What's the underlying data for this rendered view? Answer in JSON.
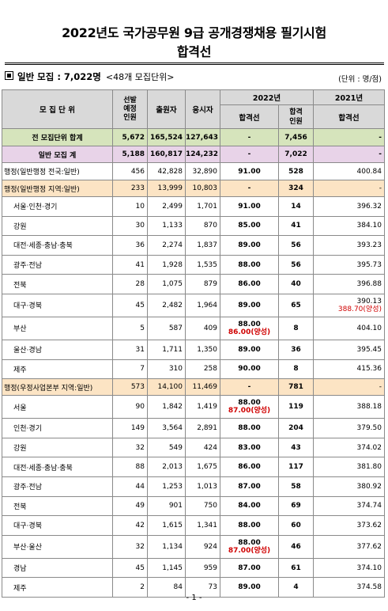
{
  "title_line1": "2022년도  국가공무원  9급  공개경쟁채용  필기시험",
  "title_line2": "합격선",
  "section": {
    "label": "일반  모집 : 7,022명",
    "sub": "<48개  모집단위>",
    "unit": "(단위 :  명/점)"
  },
  "headers": {
    "unit": "모  집  단  위",
    "planned": "선발\n예정\n인원",
    "applicants": "출원자",
    "takers": "응시자",
    "y2022": "2022년",
    "cutoff": "합격선",
    "passed": "합격\n인원",
    "y2021": "2021년",
    "cutoff2021": "합격선"
  },
  "rows": [
    {
      "type": "total",
      "name": "전  모집단위  합계",
      "planned": "5,672",
      "applicants": "165,524",
      "takers": "127,643",
      "cutoff": "-",
      "cutoff_alt": "",
      "passed": "7,456",
      "prev": "-",
      "prev_alt": ""
    },
    {
      "type": "general",
      "name": "일반  모집  계",
      "planned": "5,188",
      "applicants": "160,817",
      "takers": "124,232",
      "cutoff": "-",
      "cutoff_alt": "",
      "passed": "7,022",
      "prev": "-",
      "prev_alt": ""
    },
    {
      "type": "plain",
      "name": "행정(일반행정 전국:일반)",
      "planned": "456",
      "applicants": "42,828",
      "takers": "32,890",
      "cutoff": "91.00",
      "cutoff_alt": "",
      "passed": "528",
      "prev": "400.84",
      "prev_alt": ""
    },
    {
      "type": "group",
      "name": "행정(일반행정 지역:일반)",
      "planned": "233",
      "applicants": "13,999",
      "takers": "10,803",
      "cutoff": "-",
      "cutoff_alt": "",
      "passed": "324",
      "prev": "-",
      "prev_alt": ""
    },
    {
      "type": "sub",
      "name": "서울·인천·경기",
      "planned": "10",
      "applicants": "2,499",
      "takers": "1,701",
      "cutoff": "91.00",
      "cutoff_alt": "",
      "passed": "14",
      "prev": "396.32",
      "prev_alt": ""
    },
    {
      "type": "sub",
      "name": "강원",
      "planned": "30",
      "applicants": "1,133",
      "takers": "870",
      "cutoff": "85.00",
      "cutoff_alt": "",
      "passed": "41",
      "prev": "384.10",
      "prev_alt": ""
    },
    {
      "type": "sub",
      "name": "대전·세종·충남·충북",
      "planned": "36",
      "applicants": "2,274",
      "takers": "1,837",
      "cutoff": "89.00",
      "cutoff_alt": "",
      "passed": "56",
      "prev": "393.23",
      "prev_alt": ""
    },
    {
      "type": "sub",
      "name": "광주·전남",
      "planned": "41",
      "applicants": "1,928",
      "takers": "1,535",
      "cutoff": "88.00",
      "cutoff_alt": "",
      "passed": "56",
      "prev": "395.73",
      "prev_alt": ""
    },
    {
      "type": "sub",
      "name": "전북",
      "planned": "28",
      "applicants": "1,075",
      "takers": "879",
      "cutoff": "86.00",
      "cutoff_alt": "",
      "passed": "40",
      "prev": "396.88",
      "prev_alt": ""
    },
    {
      "type": "sub",
      "name": "대구·경북",
      "planned": "45",
      "applicants": "2,482",
      "takers": "1,964",
      "cutoff": "89.00",
      "cutoff_alt": "",
      "passed": "65",
      "prev": "390.13",
      "prev_alt": "388.70(양성)"
    },
    {
      "type": "sub",
      "name": "부산",
      "planned": "5",
      "applicants": "587",
      "takers": "409",
      "cutoff": "88.00",
      "cutoff_alt": "86.00(양성)",
      "passed": "8",
      "prev": "404.10",
      "prev_alt": ""
    },
    {
      "type": "sub",
      "name": "울산·경남",
      "planned": "31",
      "applicants": "1,711",
      "takers": "1,350",
      "cutoff": "89.00",
      "cutoff_alt": "",
      "passed": "36",
      "prev": "395.45",
      "prev_alt": ""
    },
    {
      "type": "sub",
      "name": "제주",
      "planned": "7",
      "applicants": "310",
      "takers": "258",
      "cutoff": "90.00",
      "cutoff_alt": "",
      "passed": "8",
      "prev": "415.36",
      "prev_alt": ""
    },
    {
      "type": "group",
      "name": "행정(우정사업본부 지역:일반)",
      "planned": "573",
      "applicants": "14,100",
      "takers": "11,469",
      "cutoff": "-",
      "cutoff_alt": "",
      "passed": "781",
      "prev": "-",
      "prev_alt": ""
    },
    {
      "type": "sub",
      "name": "서울",
      "planned": "90",
      "applicants": "1,842",
      "takers": "1,419",
      "cutoff": "88.00",
      "cutoff_alt": "87.00(양성)",
      "passed": "119",
      "prev": "388.18",
      "prev_alt": ""
    },
    {
      "type": "sub",
      "name": "인천·경기",
      "planned": "149",
      "applicants": "3,564",
      "takers": "2,891",
      "cutoff": "88.00",
      "cutoff_alt": "",
      "passed": "204",
      "prev": "379.50",
      "prev_alt": ""
    },
    {
      "type": "sub",
      "name": "강원",
      "planned": "32",
      "applicants": "549",
      "takers": "424",
      "cutoff": "83.00",
      "cutoff_alt": "",
      "passed": "43",
      "prev": "374.02",
      "prev_alt": ""
    },
    {
      "type": "sub",
      "name": "대전·세종·충남·충북",
      "planned": "88",
      "applicants": "2,013",
      "takers": "1,675",
      "cutoff": "86.00",
      "cutoff_alt": "",
      "passed": "117",
      "prev": "381.80",
      "prev_alt": ""
    },
    {
      "type": "sub",
      "name": "광주·전남",
      "planned": "44",
      "applicants": "1,253",
      "takers": "1,013",
      "cutoff": "87.00",
      "cutoff_alt": "",
      "passed": "58",
      "prev": "380.92",
      "prev_alt": ""
    },
    {
      "type": "sub",
      "name": "전북",
      "planned": "49",
      "applicants": "901",
      "takers": "750",
      "cutoff": "84.00",
      "cutoff_alt": "",
      "passed": "69",
      "prev": "374.74",
      "prev_alt": ""
    },
    {
      "type": "sub",
      "name": "대구·경북",
      "planned": "42",
      "applicants": "1,615",
      "takers": "1,341",
      "cutoff": "88.00",
      "cutoff_alt": "",
      "passed": "60",
      "prev": "373.62",
      "prev_alt": ""
    },
    {
      "type": "sub",
      "name": "부산·울산",
      "planned": "32",
      "applicants": "1,134",
      "takers": "924",
      "cutoff": "88.00",
      "cutoff_alt": "87.00(양성)",
      "passed": "46",
      "prev": "377.62",
      "prev_alt": ""
    },
    {
      "type": "sub",
      "name": "경남",
      "planned": "45",
      "applicants": "1,145",
      "takers": "959",
      "cutoff": "87.00",
      "cutoff_alt": "",
      "passed": "61",
      "prev": "374.10",
      "prev_alt": ""
    },
    {
      "type": "sub",
      "name": "제주",
      "planned": "2",
      "applicants": "84",
      "takers": "73",
      "cutoff": "89.00",
      "cutoff_alt": "",
      "passed": "4",
      "prev": "374.58",
      "prev_alt": ""
    }
  ],
  "page_number": "- 1 -"
}
